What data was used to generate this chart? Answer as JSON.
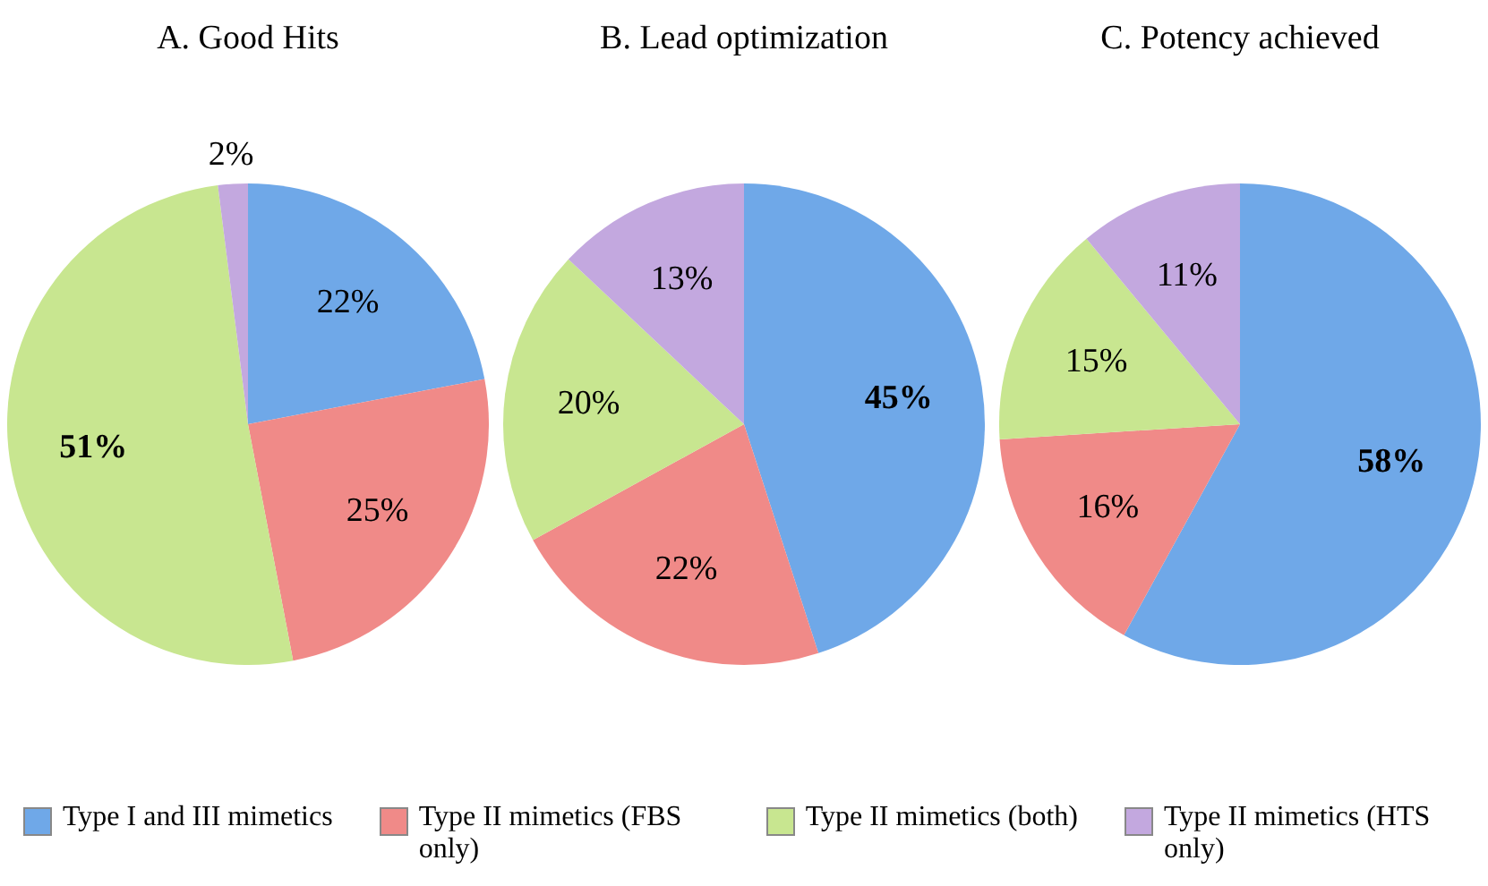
{
  "chart_data": [
    {
      "type": "pie",
      "title": "A. Good Hits",
      "categories": [
        "Type I and III mimetics",
        "Type II mimetics (FBS only)",
        "Type II mimetics (both)",
        "Type II mimetics (HTS only)"
      ],
      "values": [
        22,
        25,
        51,
        2
      ],
      "value_labels": [
        "22%",
        "25%",
        "51%",
        "2%"
      ],
      "colors": [
        "#6fa8e8",
        "#f08a88",
        "#c8e690",
        "#c3a8df"
      ],
      "legend": "bottom"
    },
    {
      "type": "pie",
      "title": "B. Lead optimization",
      "categories": [
        null,
        null,
        null,
        null
      ],
      "values": [
        45,
        22,
        20,
        13
      ],
      "value_labels": [
        "45%",
        "22%",
        "20%",
        "13%"
      ],
      "colors": [
        "#6fa8e8",
        "#f08a88",
        "#c8e690",
        "#c3a8df"
      ]
    },
    {
      "type": "pie",
      "title": "C. Potency achieved",
      "categories": [
        null,
        null,
        null,
        null
      ],
      "values": [
        58,
        16,
        15,
        11
      ],
      "value_labels": [
        "58%",
        "16%",
        "15%",
        "11%"
      ],
      "colors": [
        "#6fa8e8",
        "#f08a88",
        "#c8e690",
        "#c3a8df"
      ]
    }
  ]
}
